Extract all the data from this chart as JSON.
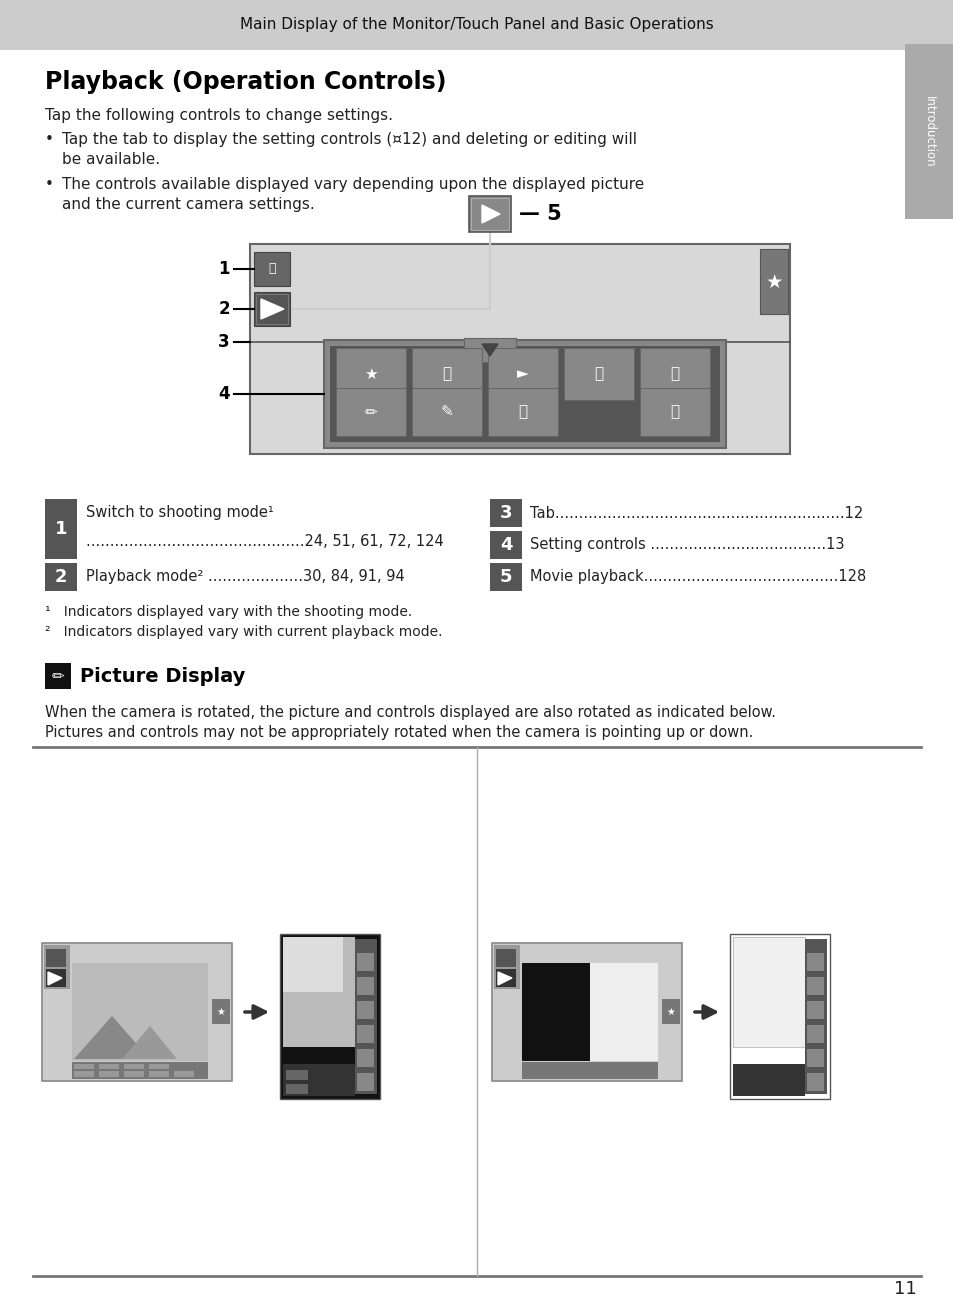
{
  "page_bg": "#ffffff",
  "header_bg": "#cccccc",
  "header_text": "Main Display of the Monitor/Touch Panel and Basic Operations",
  "title": "Playback (Operation Controls)",
  "body_text_1": "Tap the following controls to change settings.",
  "bullet_1a": "Tap the tab to display the setting controls (¤12) and deleting or editing will",
  "bullet_1b": "be available.",
  "bullet_2a": "The controls available displayed vary depending upon the displayed picture",
  "bullet_2b": "and the current camera settings.",
  "intro_label": "Introduction",
  "ref_num_bg": "#555555",
  "ref_1_title": "Switch to shooting mode¹",
  "ref_1_pages": "..............................................24, 51, 61, 72, 124",
  "ref_2_text": "Playback mode² ....................30, 84, 91, 94",
  "ref_3_text": "Tab.............................................................12",
  "ref_4_text": "Setting controls .....................................13",
  "ref_5_text": "Movie playback.........................................128",
  "footnote_1": "¹   Indicators displayed vary with the shooting mode.",
  "footnote_2": "²   Indicators displayed vary with current playback mode.",
  "section2_title": "Picture Display",
  "section2_body_1": "When the camera is rotated, the picture and controls displayed are also rotated as indicated below.",
  "section2_body_2": "Pictures and controls may not be appropriately rotated when the camera is pointing up or down.",
  "page_number": "11",
  "cam_rect_fc": "#d8d8d8",
  "cam_rect_ec": "#666666",
  "icon_btn_fc": "#888888",
  "icon_btn_dark": "#444444",
  "ctrl_panel_fc": "#555555",
  "ctrl_btn_fc": "#888888",
  "star_btn_fc": "#777777",
  "tab_btn_fc": "#888888",
  "lbl5_btn_fc": "#777777",
  "sidebar_color": "#aaaaaa"
}
